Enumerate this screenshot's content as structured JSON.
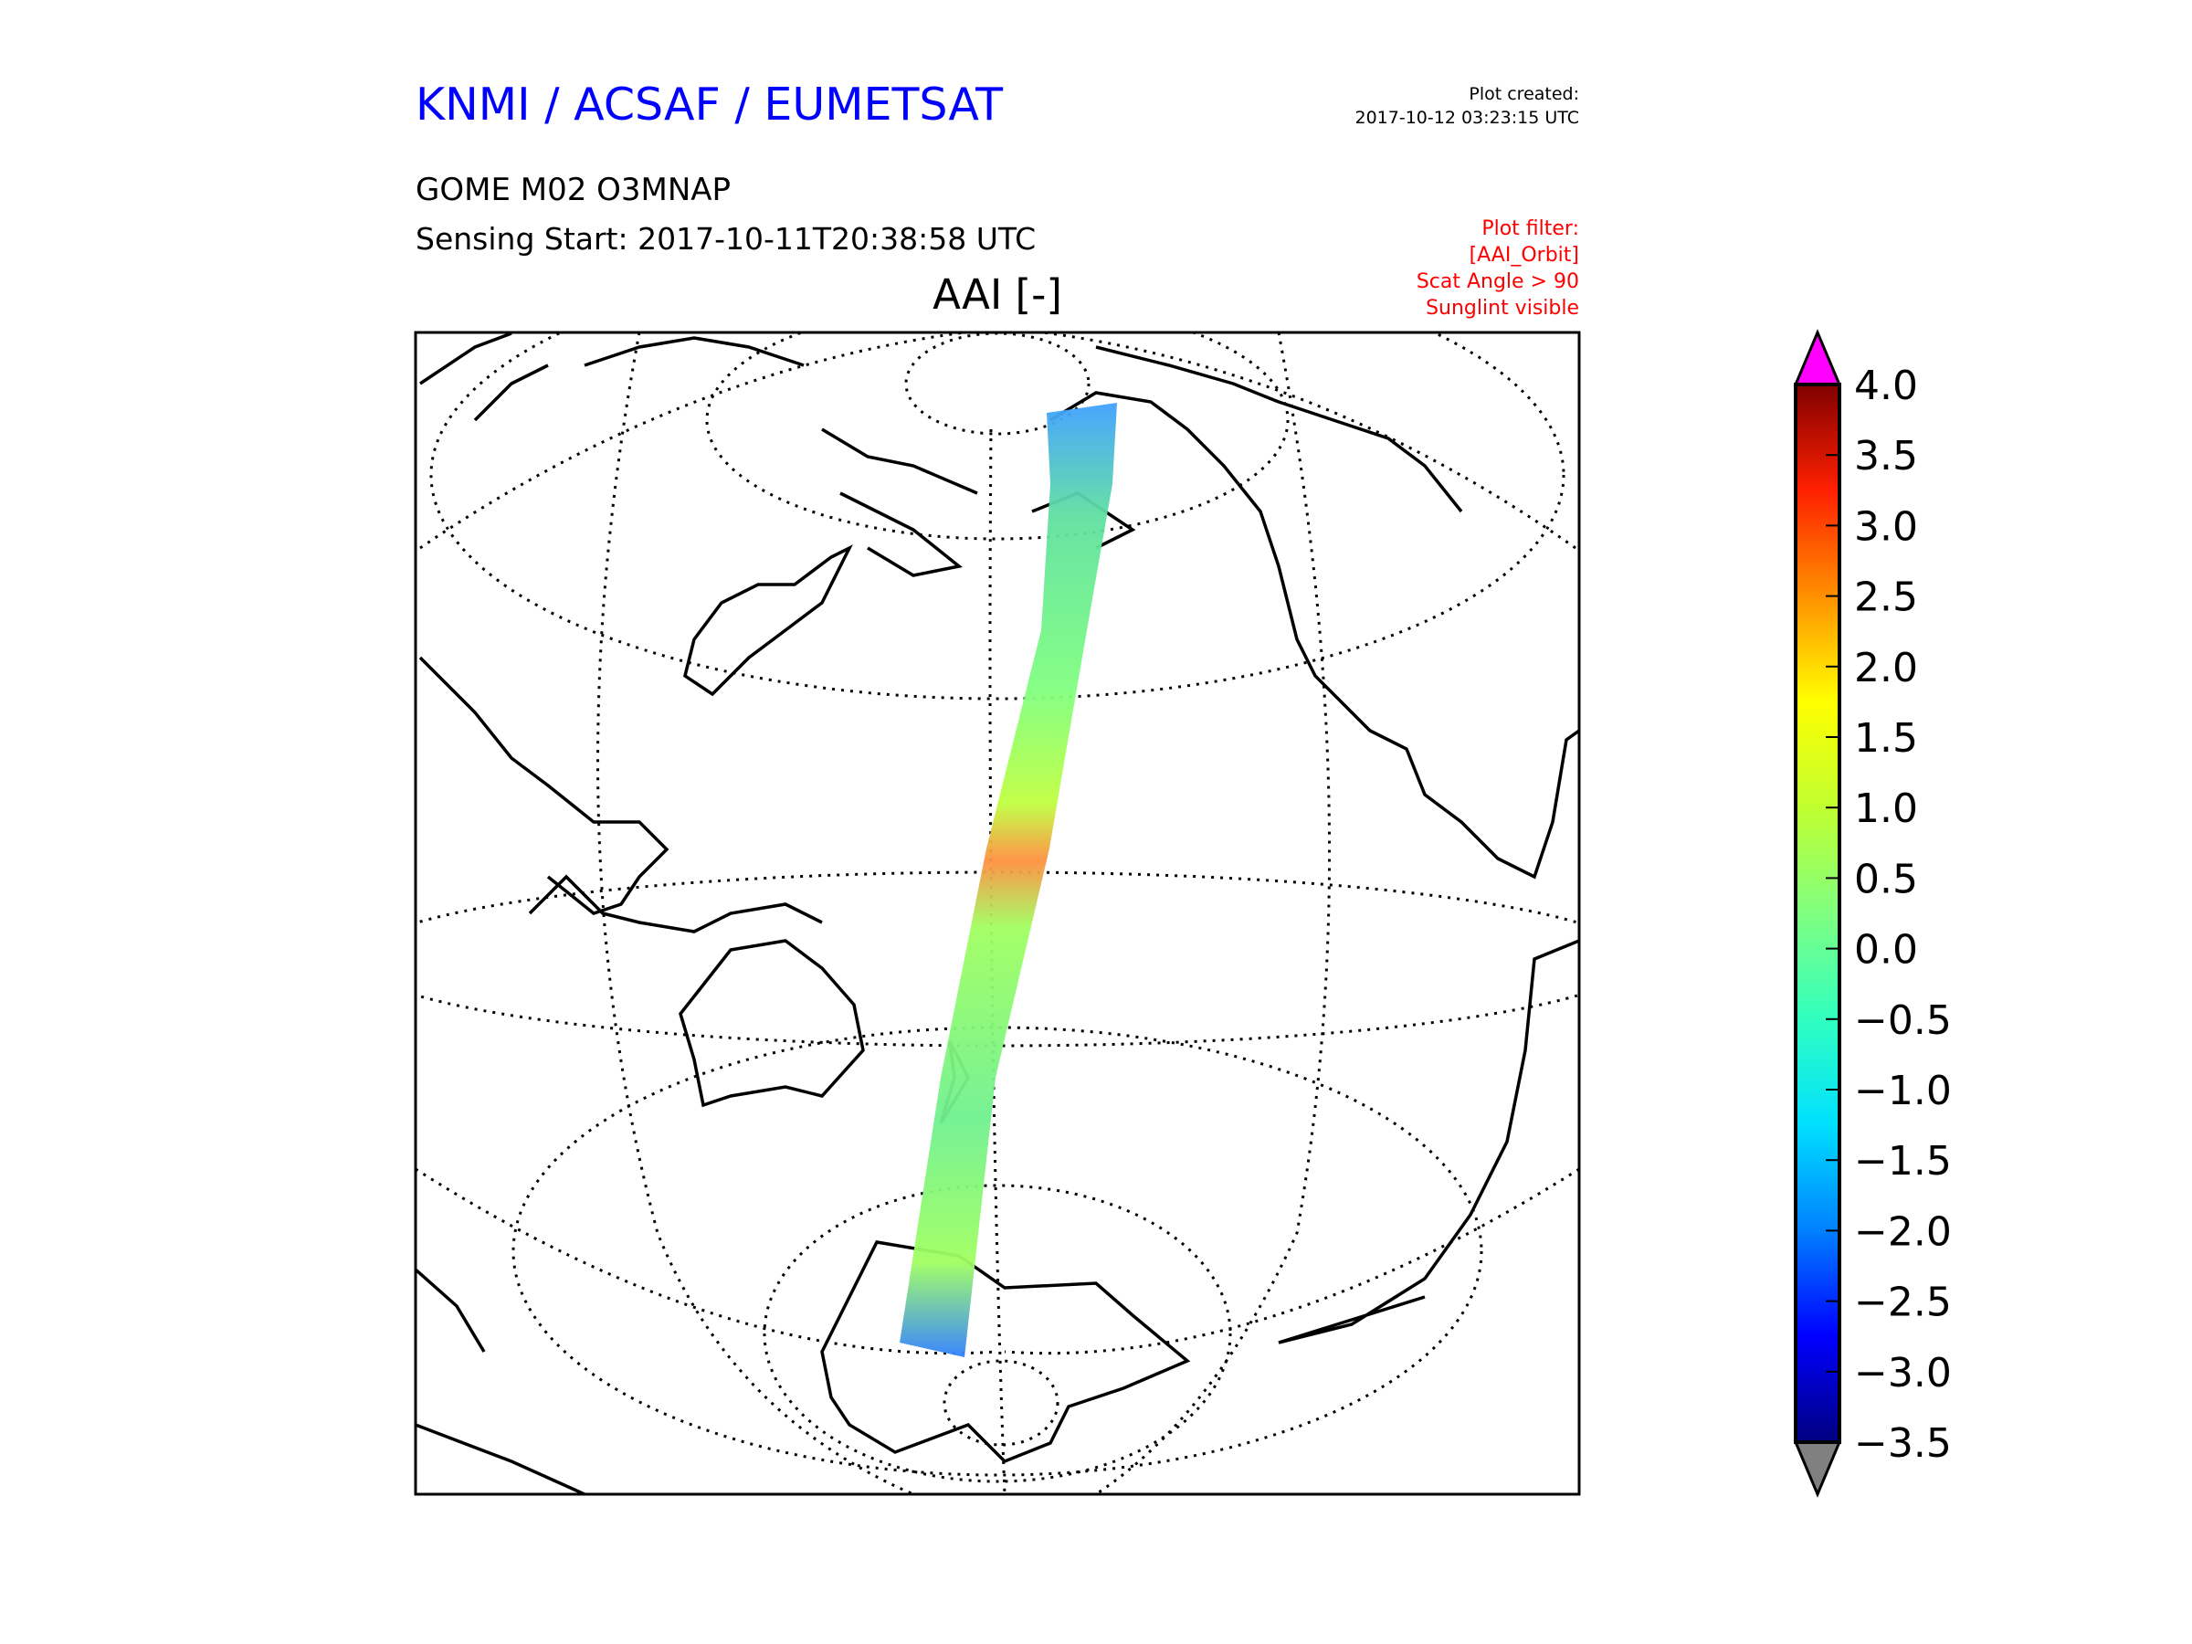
{
  "header": {
    "organization": "KNMI / ACSAF / EUMETSAT",
    "plot_created_label": "Plot created:",
    "plot_created_time": "2017-10-12 03:23:15 UTC",
    "product": "GOME M02 O3MNAP",
    "sensing_start": "Sensing Start: 2017-10-11T20:38:58 UTC",
    "filter_lines": [
      "Plot filter:",
      "[AAI_Orbit]",
      "Scat Angle > 90",
      "Sunglint visible"
    ]
  },
  "plot": {
    "title": "AAI [-]"
  },
  "colorbar": {
    "min": -3.5,
    "max": 4.0,
    "ticks": [
      "4.0",
      "3.5",
      "3.0",
      "2.5",
      "2.0",
      "1.5",
      "1.0",
      "0.5",
      "0.0",
      "−0.5",
      "−1.0",
      "−1.5",
      "−2.0",
      "−2.5",
      "−3.0",
      "−3.5"
    ],
    "over_color": "#ff00ff",
    "under_color": "#808080",
    "colormap": [
      "#000080",
      "#0000ff",
      "#0080ff",
      "#00e0ff",
      "#30ffc0",
      "#80ff80",
      "#c0ff30",
      "#ffff00",
      "#ff9000",
      "#ff2000",
      "#800000"
    ]
  },
  "colors": {
    "title": "#0000ff",
    "filter": "#ff0000"
  }
}
